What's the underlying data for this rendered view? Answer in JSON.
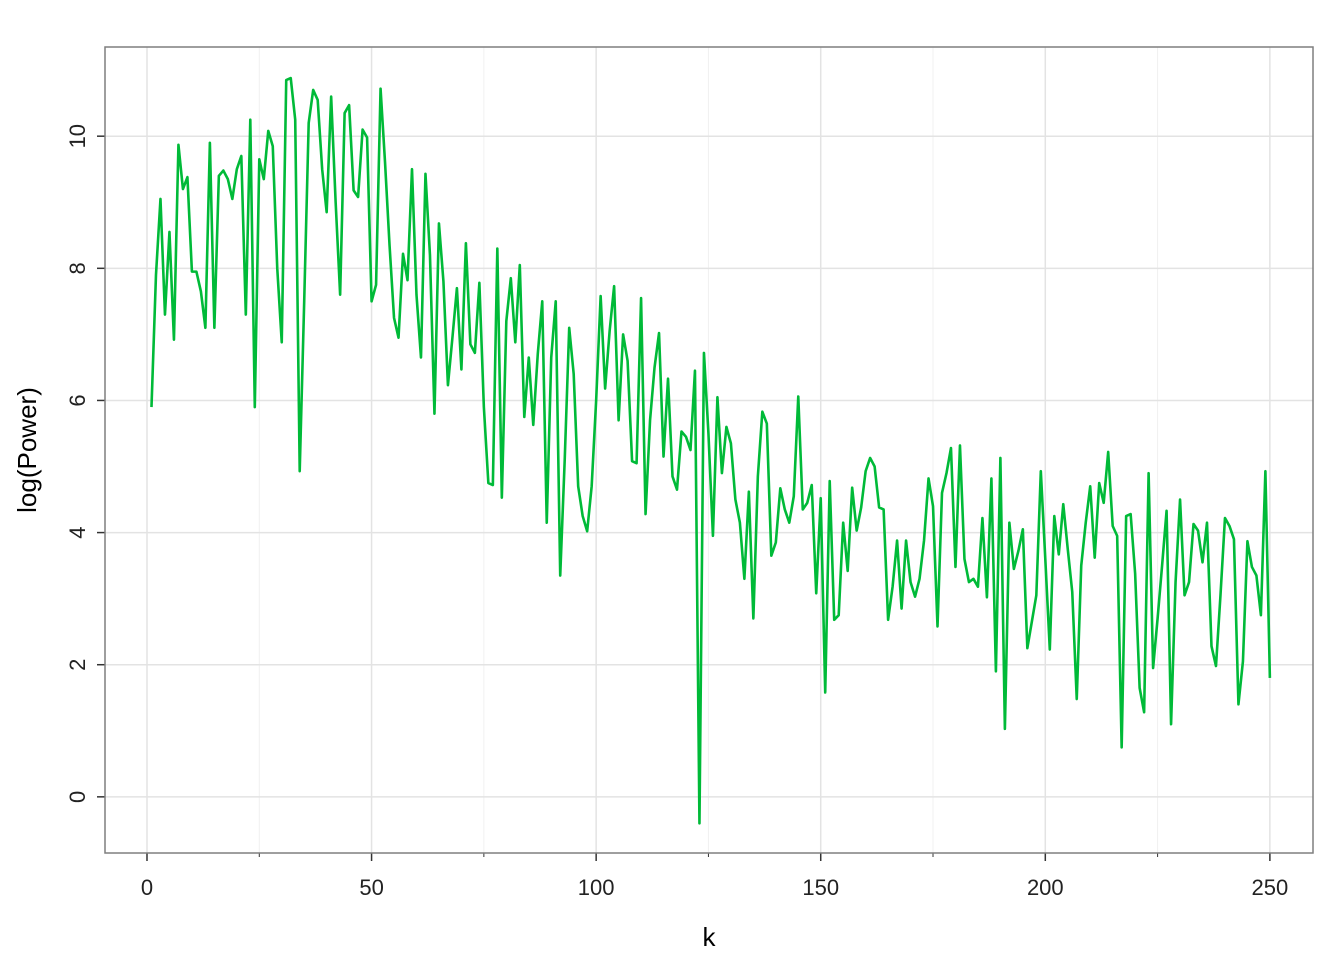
{
  "chart_data": {
    "type": "line",
    "x_label": "k",
    "y_label": "log(Power)",
    "x": [
      1,
      2,
      3,
      4,
      5,
      6,
      7,
      8,
      9,
      10,
      11,
      12,
      13,
      14,
      15,
      16,
      17,
      18,
      19,
      20,
      21,
      22,
      23,
      24,
      25,
      26,
      27,
      28,
      29,
      30,
      31,
      32,
      33,
      34,
      35,
      36,
      37,
      38,
      39,
      40,
      41,
      42,
      43,
      44,
      45,
      46,
      47,
      48,
      49,
      50,
      51,
      52,
      53,
      54,
      55,
      56,
      57,
      58,
      59,
      60,
      61,
      62,
      63,
      64,
      65,
      66,
      67,
      68,
      69,
      70,
      71,
      72,
      73,
      74,
      75,
      76,
      77,
      78,
      79,
      80,
      81,
      82,
      83,
      84,
      85,
      86,
      87,
      88,
      89,
      90,
      91,
      92,
      93,
      94,
      95,
      96,
      97,
      98,
      99,
      100,
      101,
      102,
      103,
      104,
      105,
      106,
      107,
      108,
      109,
      110,
      111,
      112,
      113,
      114,
      115,
      116,
      117,
      118,
      119,
      120,
      121,
      122,
      123,
      124,
      125,
      126,
      127,
      128,
      129,
      130,
      131,
      132,
      133,
      134,
      135,
      136,
      137,
      138,
      139,
      140,
      141,
      142,
      143,
      144,
      145,
      146,
      147,
      148,
      149,
      150,
      151,
      152,
      153,
      154,
      155,
      156,
      157,
      158,
      159,
      160,
      161,
      162,
      163,
      164,
      165,
      166,
      167,
      168,
      169,
      170,
      171,
      172,
      173,
      174,
      175,
      176,
      177,
      178,
      179,
      180,
      181,
      182,
      183,
      184,
      185,
      186,
      187,
      188,
      189,
      190,
      191,
      192,
      193,
      194,
      195,
      196,
      197,
      198,
      199,
      200,
      201,
      202,
      203,
      204,
      205,
      206,
      207,
      208,
      209,
      210,
      211,
      212,
      213,
      214,
      215,
      216,
      217,
      218,
      219,
      220,
      221,
      222,
      223,
      224,
      225,
      226,
      227,
      228,
      229,
      230,
      231,
      232,
      233,
      234,
      235,
      236,
      237,
      238,
      239,
      240,
      241,
      242,
      243,
      244,
      245,
      246,
      247,
      248,
      249,
      250
    ],
    "series": [
      {
        "name": "log(Power)",
        "color": "#00ba38",
        "values": [
          5.9,
          7.9,
          9.05,
          7.3,
          8.55,
          6.92,
          9.87,
          9.2,
          9.38,
          7.95,
          7.95,
          7.65,
          7.1,
          9.9,
          7.1,
          9.4,
          9.48,
          9.35,
          9.05,
          9.5,
          9.7,
          7.3,
          10.25,
          5.9,
          9.65,
          9.35,
          10.08,
          9.85,
          8.0,
          6.88,
          10.85,
          10.88,
          10.25,
          4.93,
          7.5,
          10.2,
          10.7,
          10.55,
          9.5,
          8.85,
          10.6,
          9.0,
          7.6,
          10.35,
          10.47,
          9.18,
          9.08,
          10.1,
          9.98,
          7.5,
          7.75,
          10.72,
          9.6,
          8.35,
          7.25,
          6.95,
          8.22,
          7.82,
          9.5,
          7.6,
          6.65,
          9.43,
          8.2,
          5.8,
          8.68,
          7.8,
          6.23,
          6.95,
          7.7,
          6.47,
          8.38,
          6.85,
          6.72,
          7.78,
          5.9,
          4.75,
          4.72,
          8.3,
          4.53,
          7.2,
          7.85,
          6.88,
          8.05,
          5.75,
          6.65,
          5.63,
          6.7,
          7.5,
          4.15,
          6.65,
          7.5,
          3.35,
          5.1,
          7.1,
          6.4,
          4.7,
          4.25,
          4.02,
          4.7,
          6.0,
          7.58,
          6.18,
          7.05,
          7.73,
          5.7,
          7.0,
          6.6,
          5.08,
          5.05,
          7.55,
          4.28,
          5.7,
          6.5,
          7.02,
          5.15,
          6.33,
          4.85,
          4.65,
          5.53,
          5.45,
          5.25,
          6.45,
          -0.4,
          6.72,
          5.5,
          3.95,
          6.05,
          4.9,
          5.6,
          5.35,
          4.5,
          4.15,
          3.3,
          4.62,
          2.7,
          4.85,
          5.83,
          5.65,
          3.65,
          3.85,
          4.67,
          4.35,
          4.15,
          4.55,
          6.06,
          4.35,
          4.45,
          4.72,
          3.08,
          4.52,
          1.58,
          4.78,
          2.68,
          2.75,
          4.15,
          3.42,
          4.68,
          4.03,
          4.38,
          4.93,
          5.13,
          5.0,
          4.38,
          4.35,
          2.68,
          3.18,
          3.88,
          2.85,
          3.88,
          3.25,
          3.03,
          3.3,
          3.88,
          4.82,
          4.4,
          2.58,
          4.6,
          4.9,
          5.28,
          3.48,
          5.32,
          3.6,
          3.25,
          3.3,
          3.18,
          4.22,
          3.02,
          4.82,
          1.9,
          5.13,
          1.03,
          4.15,
          3.45,
          3.72,
          4.05,
          2.25,
          2.65,
          3.05,
          4.93,
          3.6,
          2.23,
          4.25,
          3.67,
          4.43,
          3.75,
          3.1,
          1.48,
          3.5,
          4.15,
          4.7,
          3.62,
          4.75,
          4.45,
          5.22,
          4.1,
          3.95,
          0.75,
          4.25,
          4.28,
          3.38,
          1.65,
          1.28,
          4.9,
          1.95,
          2.7,
          3.5,
          4.33,
          1.1,
          3.25,
          4.5,
          3.05,
          3.25,
          4.13,
          4.03,
          3.55,
          4.15,
          2.28,
          1.98,
          3.05,
          4.22,
          4.1,
          3.9,
          1.4,
          2.05,
          3.87,
          3.48,
          3.35,
          2.75,
          4.93,
          1.8
        ]
      }
    ],
    "xlim": [
      -9.35,
      259.6
    ],
    "ylim": [
      -0.85,
      11.35
    ],
    "xticks": [
      0,
      50,
      100,
      150,
      200,
      250
    ],
    "xminor": [
      25,
      75,
      125,
      175,
      225
    ],
    "yticks": [
      0,
      2,
      4,
      6,
      8,
      10
    ],
    "grid": true
  }
}
